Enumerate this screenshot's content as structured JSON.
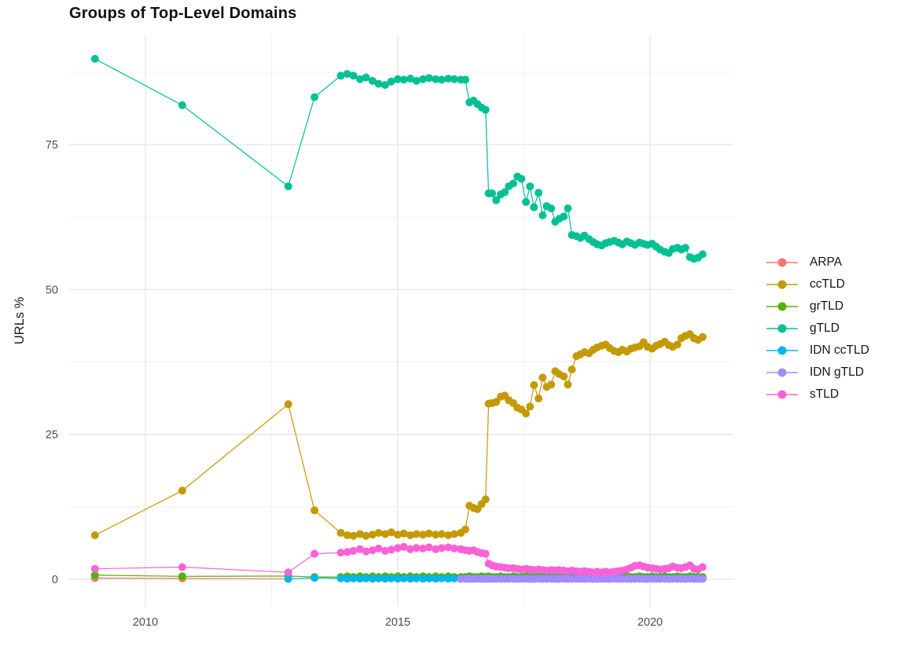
{
  "title": "Groups of Top-Level Domains",
  "y_axis_title": "URLs %",
  "chart_data": {
    "type": "line",
    "title": "Groups of Top-Level Domains",
    "xlabel": "",
    "ylabel": "URLs %",
    "xlim": [
      2008.4,
      2021.7
    ],
    "ylim": [
      -4.5,
      94.5
    ],
    "x_ticks": [
      2010,
      2015,
      2020
    ],
    "y_ticks": [
      0,
      25,
      50,
      75
    ],
    "x_minor_gridlines": [
      2012.5,
      2017.5
    ],
    "y_minor_gridlines": [
      12.5,
      37.5,
      62.5,
      87.5
    ],
    "grid": "on",
    "legend_position": "right",
    "colors": {
      "major_grid": "#e4e4e4",
      "minor_grid": "#f1f1f1",
      "axis_text": "#4d4d4d",
      "title_text": "#121212"
    },
    "x_dense": [
      2013.87,
      2014.0,
      2014.12,
      2014.25,
      2014.37,
      2014.5,
      2014.62,
      2014.75,
      2014.87,
      2015.0,
      2015.12,
      2015.25,
      2015.37,
      2015.5,
      2015.62,
      2015.75,
      2015.87,
      2016.0,
      2016.12,
      2016.25,
      2016.34,
      2016.42,
      2016.5,
      2016.58,
      2016.66,
      2016.74,
      2016.8,
      2016.87,
      2016.95,
      2017.04,
      2017.12,
      2017.2,
      2017.29,
      2017.37,
      2017.45,
      2017.54,
      2017.62,
      2017.7,
      2017.79,
      2017.87,
      2017.95,
      2018.04,
      2018.12,
      2018.2,
      2018.29,
      2018.37,
      2018.45,
      2018.54,
      2018.62,
      2018.7,
      2018.79,
      2018.87,
      2018.95,
      2019.04,
      2019.12,
      2019.2,
      2019.29,
      2019.37,
      2019.45,
      2019.54,
      2019.62,
      2019.7,
      2019.79,
      2019.87,
      2019.95,
      2020.04,
      2020.12,
      2020.2,
      2020.29,
      2020.37,
      2020.45,
      2020.54,
      2020.62,
      2020.7,
      2020.79,
      2020.87,
      2020.95,
      2021.04
    ],
    "series": [
      {
        "name": "ARPA",
        "color": "#F8766D",
        "sparse": [
          [
            2009.0,
            0.2
          ],
          [
            2010.73,
            0.15
          ],
          [
            2012.83,
            0.1
          ]
        ],
        "dense": [
          null,
          null,
          null,
          null,
          null,
          null,
          null,
          null,
          null,
          null,
          null,
          null,
          null,
          null,
          null,
          null,
          null,
          null,
          null,
          null,
          null,
          null,
          null,
          null,
          null,
          null,
          null,
          null,
          null,
          null,
          null,
          null,
          null,
          null,
          null,
          null,
          null,
          null,
          null,
          null,
          null,
          null,
          null,
          null,
          null,
          null,
          null,
          null,
          null,
          null,
          null,
          null,
          null,
          null,
          null,
          null,
          null,
          null,
          null,
          null,
          null,
          null,
          null,
          null,
          null,
          null,
          null,
          null,
          null,
          null,
          null,
          null,
          null,
          null,
          null,
          null,
          null,
          null
        ]
      },
      {
        "name": "ccTLD",
        "color": "#C49A00",
        "sparse": [
          [
            2009.0,
            7.6
          ],
          [
            2010.73,
            15.3
          ],
          [
            2012.83,
            30.2
          ],
          [
            2013.35,
            11.9
          ]
        ],
        "dense": [
          8.0,
          7.6,
          7.5,
          7.8,
          7.5,
          7.7,
          8.0,
          7.8,
          8.1,
          7.7,
          7.9,
          7.6,
          7.8,
          7.7,
          7.9,
          7.7,
          7.8,
          7.6,
          7.8,
          8.0,
          8.6,
          12.7,
          12.3,
          12.1,
          13.0,
          13.8,
          30.3,
          30.4,
          30.6,
          31.5,
          31.7,
          30.9,
          30.4,
          29.6,
          29.3,
          28.6,
          29.8,
          33.5,
          31.2,
          34.8,
          33.2,
          33.6,
          35.9,
          35.4,
          35.0,
          33.6,
          36.2,
          38.5,
          38.8,
          39.2,
          39.0,
          39.6,
          40.0,
          40.3,
          40.5,
          39.9,
          39.4,
          39.2,
          39.6,
          39.3,
          39.8,
          40.0,
          40.2,
          40.9,
          40.1,
          39.8,
          40.3,
          40.6,
          41.0,
          40.4,
          40.1,
          40.5,
          41.6,
          42.0,
          42.3,
          41.6,
          41.3,
          41.8
        ]
      },
      {
        "name": "grTLD",
        "color": "#53B400",
        "sparse": [
          [
            2009.0,
            0.7
          ],
          [
            2010.73,
            0.5
          ],
          [
            2012.83,
            0.55
          ],
          [
            2013.35,
            0.4
          ]
        ],
        "dense": [
          0.4,
          0.5,
          0.4,
          0.5,
          0.4,
          0.5,
          0.4,
          0.5,
          0.4,
          0.5,
          0.4,
          0.5,
          0.4,
          0.5,
          0.4,
          0.5,
          0.4,
          0.5,
          0.4,
          0.4,
          0.4,
          0.5,
          0.4,
          0.4,
          0.5,
          0.4,
          0.5,
          0.4,
          0.4,
          0.5,
          0.4,
          0.4,
          0.5,
          0.4,
          0.4,
          0.5,
          0.4,
          0.4,
          0.5,
          0.4,
          0.4,
          0.5,
          0.4,
          0.4,
          0.5,
          0.4,
          0.4,
          0.5,
          0.4,
          0.4,
          0.5,
          0.4,
          0.4,
          0.5,
          0.4,
          0.4,
          0.5,
          0.4,
          0.4,
          0.5,
          0.4,
          0.4,
          0.5,
          0.4,
          0.4,
          0.5,
          0.4,
          0.4,
          0.5,
          0.4,
          0.4,
          0.5,
          0.4,
          0.4,
          0.5,
          0.4,
          0.4,
          0.4
        ]
      },
      {
        "name": "gTLD",
        "color": "#00C094",
        "sparse": [
          [
            2009.0,
            89.8
          ],
          [
            2010.73,
            81.8
          ],
          [
            2012.83,
            67.8
          ],
          [
            2013.35,
            83.2
          ]
        ],
        "dense": [
          86.9,
          87.2,
          86.9,
          86.3,
          86.6,
          86.0,
          85.5,
          85.3,
          85.9,
          86.3,
          86.2,
          86.4,
          86.0,
          86.3,
          86.5,
          86.3,
          86.2,
          86.4,
          86.3,
          86.2,
          86.2,
          82.3,
          82.6,
          82.0,
          81.4,
          81.0,
          66.6,
          66.6,
          65.4,
          66.4,
          66.8,
          67.8,
          68.3,
          69.5,
          69.1,
          65.1,
          67.8,
          64.2,
          66.7,
          62.8,
          64.4,
          64.0,
          61.7,
          62.2,
          62.6,
          64.0,
          59.4,
          59.2,
          58.9,
          59.3,
          58.7,
          58.2,
          57.8,
          57.6,
          58.0,
          58.2,
          58.4,
          58.1,
          57.8,
          58.3,
          58.0,
          57.7,
          58.1,
          57.9,
          57.7,
          57.9,
          57.4,
          56.9,
          56.5,
          56.3,
          57.0,
          57.2,
          56.9,
          57.2,
          55.6,
          55.3,
          55.5,
          56.1
        ]
      },
      {
        "name": "IDN ccTLD",
        "color": "#00B6EB",
        "sparse": [
          [
            2012.83,
            0.05
          ],
          [
            2013.35,
            0.25
          ]
        ],
        "dense": [
          0.15,
          0.1,
          0.15,
          0.1,
          0.15,
          0.1,
          0.15,
          0.1,
          0.15,
          0.1,
          0.15,
          0.1,
          0.15,
          0.1,
          0.15,
          0.1,
          0.15,
          0.1,
          0.15,
          0.1,
          0.15,
          0.1,
          0.15,
          0.1,
          0.15,
          0.1,
          0.15,
          0.1,
          0.15,
          0.1,
          0.15,
          0.1,
          0.15,
          0.1,
          0.15,
          0.1,
          0.15,
          0.1,
          0.15,
          0.1,
          0.15,
          0.1,
          0.15,
          0.1,
          0.15,
          0.1,
          0.15,
          0.1,
          0.15,
          0.1,
          0.15,
          0.1,
          0.15,
          0.1,
          0.15,
          0.1,
          0.15,
          0.1,
          0.15,
          0.1,
          0.15,
          0.1,
          0.15,
          0.1,
          0.15,
          0.1,
          0.15,
          0.1,
          0.15,
          0.1,
          0.15,
          0.1,
          0.15,
          0.1,
          0.15,
          0.1,
          0.15,
          0.1
        ]
      },
      {
        "name": "IDN gTLD",
        "color": "#A58AFF",
        "sparse": [],
        "dense": [
          null,
          null,
          null,
          null,
          null,
          null,
          null,
          null,
          null,
          null,
          null,
          null,
          null,
          null,
          null,
          null,
          null,
          null,
          null,
          0.05,
          0.08,
          0.05,
          0.05,
          0.08,
          0.05,
          0.05,
          0.08,
          0.05,
          0.05,
          0.08,
          0.05,
          0.05,
          0.08,
          0.05,
          0.05,
          0.08,
          0.05,
          0.05,
          0.08,
          0.05,
          0.05,
          0.08,
          0.05,
          0.05,
          0.08,
          0.05,
          0.05,
          0.08,
          0.05,
          0.05,
          0.08,
          0.05,
          0.05,
          0.08,
          0.05,
          0.05,
          0.08,
          0.05,
          0.05,
          0.08,
          0.05,
          0.05,
          0.08,
          0.05,
          0.05,
          0.08,
          0.05,
          0.05,
          0.08,
          0.05,
          0.05,
          0.08,
          0.05,
          0.05,
          0.08,
          0.05,
          0.05,
          0.05
        ]
      },
      {
        "name": "sTLD",
        "color": "#FB61D7",
        "sparse": [
          [
            2009.0,
            1.8
          ],
          [
            2010.73,
            2.1
          ],
          [
            2012.83,
            1.2
          ],
          [
            2013.35,
            4.4
          ]
        ],
        "dense": [
          4.6,
          4.7,
          4.9,
          5.2,
          4.8,
          5.0,
          5.3,
          4.9,
          5.1,
          5.4,
          5.6,
          5.2,
          5.4,
          5.3,
          5.5,
          5.2,
          5.4,
          5.5,
          5.3,
          5.2,
          5.0,
          4.9,
          5.0,
          4.7,
          4.5,
          4.4,
          2.7,
          2.4,
          2.2,
          2.1,
          2.0,
          1.9,
          1.9,
          1.8,
          1.7,
          1.8,
          1.7,
          1.6,
          1.7,
          1.6,
          1.5,
          1.6,
          1.5,
          1.6,
          1.5,
          1.4,
          1.5,
          1.4,
          1.3,
          1.4,
          1.3,
          1.2,
          1.3,
          1.2,
          1.3,
          1.2,
          1.3,
          1.4,
          1.5,
          1.7,
          2.0,
          2.3,
          2.4,
          2.2,
          2.0,
          1.9,
          1.8,
          1.7,
          1.8,
          1.9,
          2.2,
          2.0,
          1.9,
          2.1,
          2.4,
          1.8,
          1.7,
          2.1
        ]
      }
    ]
  },
  "legend": {
    "items": [
      {
        "label": "ARPA"
      },
      {
        "label": "ccTLD"
      },
      {
        "label": "grTLD"
      },
      {
        "label": "gTLD"
      },
      {
        "label": "IDN ccTLD"
      },
      {
        "label": "IDN gTLD"
      },
      {
        "label": "sTLD"
      }
    ]
  }
}
